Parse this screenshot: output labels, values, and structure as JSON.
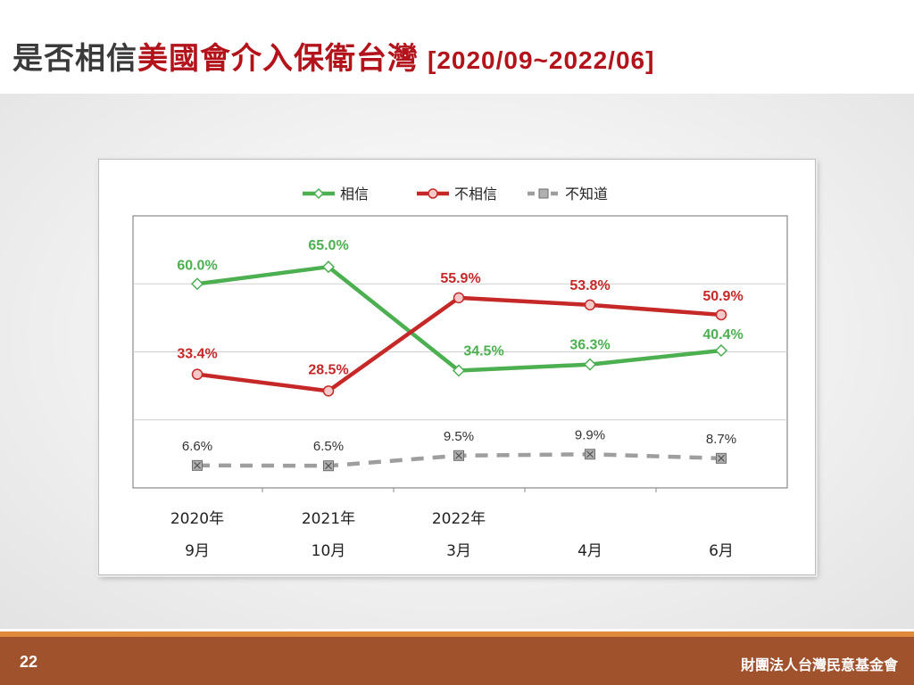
{
  "title": {
    "plain": "是否相信",
    "accent": "美國會介入保衛台灣",
    "range": "[2020/09~2022/06]"
  },
  "footer": {
    "page_number": "22",
    "organization": "財團法人台灣民意基金會"
  },
  "colors": {
    "believe": "#4caf50",
    "not_believe": "#c62828",
    "unknown": "#9e9e9e",
    "footer_bar": "#a0522d",
    "footer_line": "#e08a3c",
    "title_accent": "#b3141c"
  },
  "chart_data": {
    "type": "line",
    "categories": [
      {
        "year": "2020年",
        "month": "9月"
      },
      {
        "year": "2021年",
        "month": "10月"
      },
      {
        "year": "2022年",
        "month": "3月"
      },
      {
        "year": "",
        "month": "4月"
      },
      {
        "year": "",
        "month": "6月"
      }
    ],
    "series": [
      {
        "name": "相信",
        "values": [
          60.0,
          65.0,
          34.5,
          36.3,
          40.4
        ],
        "labels": [
          "60.0%",
          "65.0%",
          "34.5%",
          "36.3%",
          "40.4%"
        ],
        "style": "solid",
        "marker": "diamond",
        "color": "#4caf50"
      },
      {
        "name": "不相信",
        "values": [
          33.4,
          28.5,
          55.9,
          53.8,
          50.9
        ],
        "labels": [
          "33.4%",
          "28.5%",
          "55.9%",
          "53.8%",
          "50.9%"
        ],
        "style": "solid",
        "marker": "circle",
        "color": "#c62828"
      },
      {
        "name": "不知道",
        "values": [
          6.6,
          6.5,
          9.5,
          9.9,
          8.7
        ],
        "labels": [
          "6.6%",
          "6.5%",
          "9.5%",
          "9.9%",
          "8.7%"
        ],
        "style": "dashed",
        "marker": "square-x",
        "color": "#9e9e9e"
      }
    ],
    "ylim": [
      0,
      80
    ],
    "grid": true,
    "legend_position": "top"
  }
}
